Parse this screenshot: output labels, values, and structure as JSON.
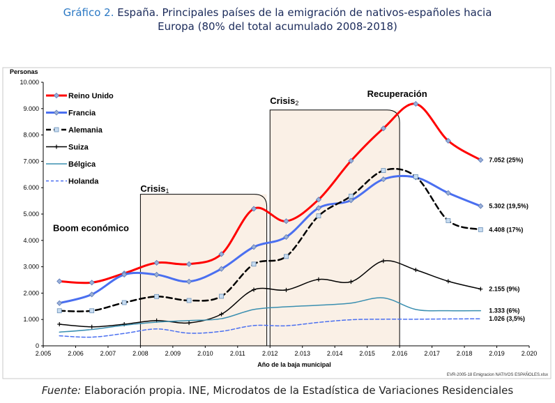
{
  "title": {
    "prefix": "Gráfico 2.",
    "line1": " España. Principales países de la emigración de nativos-españoles hacia",
    "line2": "Europa (80% del total acumulado 2008-2018)"
  },
  "source": {
    "prefix": "Fuente:",
    "text": " Elaboración propia. INE, Microdatos de la Estadística de Variaciones Residenciales"
  },
  "chart_data": {
    "type": "line",
    "ylabel": "Personas",
    "xlabel": "Año de la baja municipal",
    "xlim": [
      2005,
      2020
    ],
    "ylim": [
      0,
      10000
    ],
    "xticks": [
      "2.005",
      "2.006",
      "2.007",
      "2.008",
      "2.009",
      "2.010",
      "2.011",
      "2.012",
      "2.013",
      "2.014",
      "2.015",
      "2.016",
      "2.017",
      "2.018",
      "2.019",
      "2.020"
    ],
    "yticks": [
      "0",
      "1.000",
      "2.000",
      "3.000",
      "4.000",
      "5.000",
      "6.000",
      "7.000",
      "8.000",
      "9.000",
      "10.000"
    ],
    "legend_position": "top-left",
    "grid": false,
    "note": "EVR-2005-18 Emigracion NATIVOS ESPAÑOLES.xlsx",
    "series": [
      {
        "name": "Reino Unido",
        "color": "#ff0000",
        "style": "solid",
        "marker": "diamond",
        "width": 3,
        "x": [
          2005.5,
          2006.5,
          2007.5,
          2008.5,
          2009.5,
          2010.5,
          2011.5,
          2012.5,
          2013.5,
          2014.5,
          2015.5,
          2016.5,
          2017.5,
          2018.5
        ],
        "y": [
          2450,
          2400,
          2750,
          3150,
          3100,
          3480,
          5200,
          4730,
          5550,
          7020,
          8250,
          9180,
          7780,
          7052
        ],
        "end_label": "7.052 (25%)"
      },
      {
        "name": "Francia",
        "color": "#4a6ff0",
        "style": "solid",
        "marker": "diamond",
        "width": 3,
        "x": [
          2005.5,
          2006.5,
          2007.5,
          2008.5,
          2009.5,
          2010.5,
          2011.5,
          2012.5,
          2013.5,
          2014.5,
          2015.5,
          2016.5,
          2017.5,
          2018.5
        ],
        "y": [
          1620,
          1950,
          2700,
          2700,
          2440,
          2920,
          3750,
          4130,
          5230,
          5520,
          6320,
          6390,
          5800,
          5302
        ],
        "end_label": "5.302 (19,5%)"
      },
      {
        "name": "Alemania",
        "color": "#000000",
        "style": "dashed",
        "marker": "square",
        "width": 2.5,
        "x": [
          2005.5,
          2006.5,
          2007.5,
          2008.5,
          2009.5,
          2010.5,
          2011.5,
          2012.5,
          2013.5,
          2014.5,
          2015.5,
          2016.5,
          2017.5,
          2018.5
        ],
        "y": [
          1330,
          1330,
          1640,
          1870,
          1720,
          1880,
          3100,
          3390,
          4930,
          5680,
          6650,
          6420,
          4750,
          4408
        ],
        "end_label": "4.408 (17%)"
      },
      {
        "name": "Suiza",
        "color": "#000000",
        "style": "solid",
        "marker": "plus",
        "width": 1.5,
        "x": [
          2005.5,
          2006.5,
          2007.5,
          2008.5,
          2009.5,
          2010.5,
          2011.5,
          2012.5,
          2013.5,
          2014.5,
          2015.5,
          2016.5,
          2017.5,
          2018.5
        ],
        "y": [
          820,
          720,
          820,
          960,
          870,
          1200,
          2130,
          2120,
          2520,
          2430,
          3220,
          2880,
          2450,
          2155
        ],
        "end_label": "2.155 (9%)"
      },
      {
        "name": "Bélgica",
        "color": "#3a8fb0",
        "style": "solid",
        "marker": "none",
        "width": 1.5,
        "x": [
          2005.5,
          2006.5,
          2007.5,
          2008.5,
          2009.5,
          2010.5,
          2011.5,
          2012.5,
          2013.5,
          2014.5,
          2015.5,
          2016.5,
          2017.5,
          2018.5
        ],
        "y": [
          520,
          620,
          780,
          900,
          960,
          1030,
          1380,
          1480,
          1540,
          1620,
          1820,
          1380,
          1333,
          1333
        ],
        "end_label": "1.333 (6%)"
      },
      {
        "name": "Holanda",
        "color": "#4a6ff0",
        "style": "dashed",
        "marker": "none",
        "width": 1.5,
        "x": [
          2005.5,
          2006.5,
          2007.5,
          2008.5,
          2009.5,
          2010.5,
          2011.5,
          2012.5,
          2013.5,
          2014.5,
          2015.5,
          2016.5,
          2017.5,
          2018.5
        ],
        "y": [
          380,
          330,
          470,
          640,
          480,
          550,
          770,
          760,
          890,
          990,
          1010,
          1010,
          1020,
          1026
        ],
        "end_label": "1.026 (3,5%)"
      }
    ],
    "annotations": [
      {
        "text": "Boom económico",
        "x": 2005.3,
        "y": 4350
      },
      {
        "text": "Crisis",
        "sub": "1",
        "x": 2008.0,
        "y": 5850
      },
      {
        "text": "Crisis",
        "sub": "2",
        "x": 2012.0,
        "y": 9180
      },
      {
        "text": "Recuperación",
        "x": 2015.0,
        "y": 9450
      }
    ],
    "periods": [
      {
        "x0": 2008.0,
        "x1": 2011.9,
        "ytop": 5750
      },
      {
        "x0": 2012.0,
        "x1": 2016.0,
        "ytop": 8950
      }
    ]
  }
}
